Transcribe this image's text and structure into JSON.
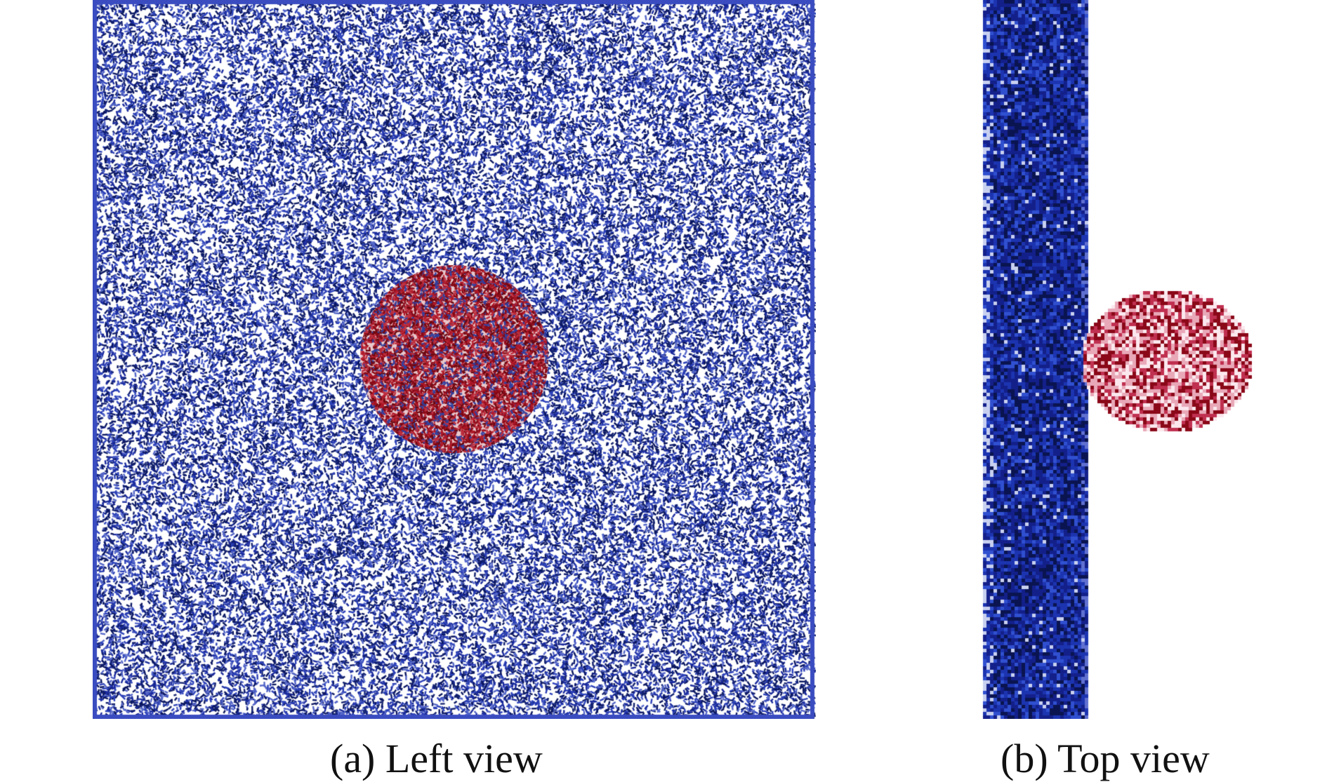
{
  "panels": [
    {
      "caption": "(a) Left view",
      "body_color": "#1a2a8c",
      "particle_color": "#9b1020"
    },
    {
      "caption": "(b) Top view",
      "body_color": "#0d1a70",
      "particle_color": "#a01a30"
    }
  ]
}
